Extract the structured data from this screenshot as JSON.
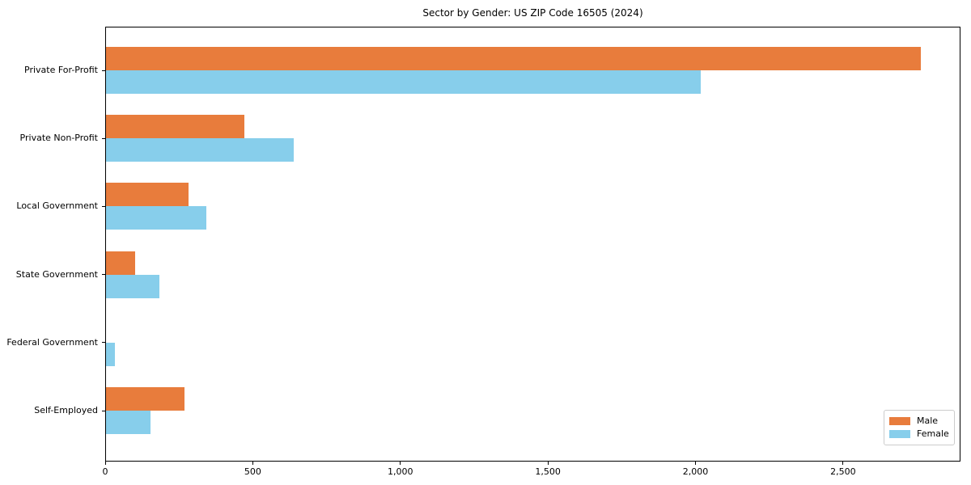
{
  "chart_data": {
    "type": "bar",
    "orientation": "horizontal",
    "title": "Sector by Gender: US ZIP Code 16505 (2024)",
    "categories": [
      "Private For-Profit",
      "Private Non-Profit",
      "Local Government",
      "State Government",
      "Federal Government",
      "Self-Employed"
    ],
    "series": [
      {
        "name": "Male",
        "color": "#E87C3C",
        "values": [
          2760,
          470,
          280,
          100,
          0,
          265
        ]
      },
      {
        "name": "Female",
        "color": "#87CEEB",
        "values": [
          2015,
          635,
          340,
          180,
          30,
          150
        ]
      }
    ],
    "xlabel": "",
    "ylabel": "",
    "xlim": [
      0,
      2898
    ],
    "xticks": {
      "values": [
        0,
        500,
        1000,
        1500,
        2000,
        2500
      ],
      "labels": [
        "0",
        "500",
        "1,000",
        "1,500",
        "2,000",
        "2,500"
      ]
    },
    "grid": false,
    "legend": {
      "position": "lower right"
    },
    "colors": {
      "male": "#E87C3C",
      "female": "#87CEEB",
      "spine": "#000000",
      "background": "#ffffff"
    }
  }
}
